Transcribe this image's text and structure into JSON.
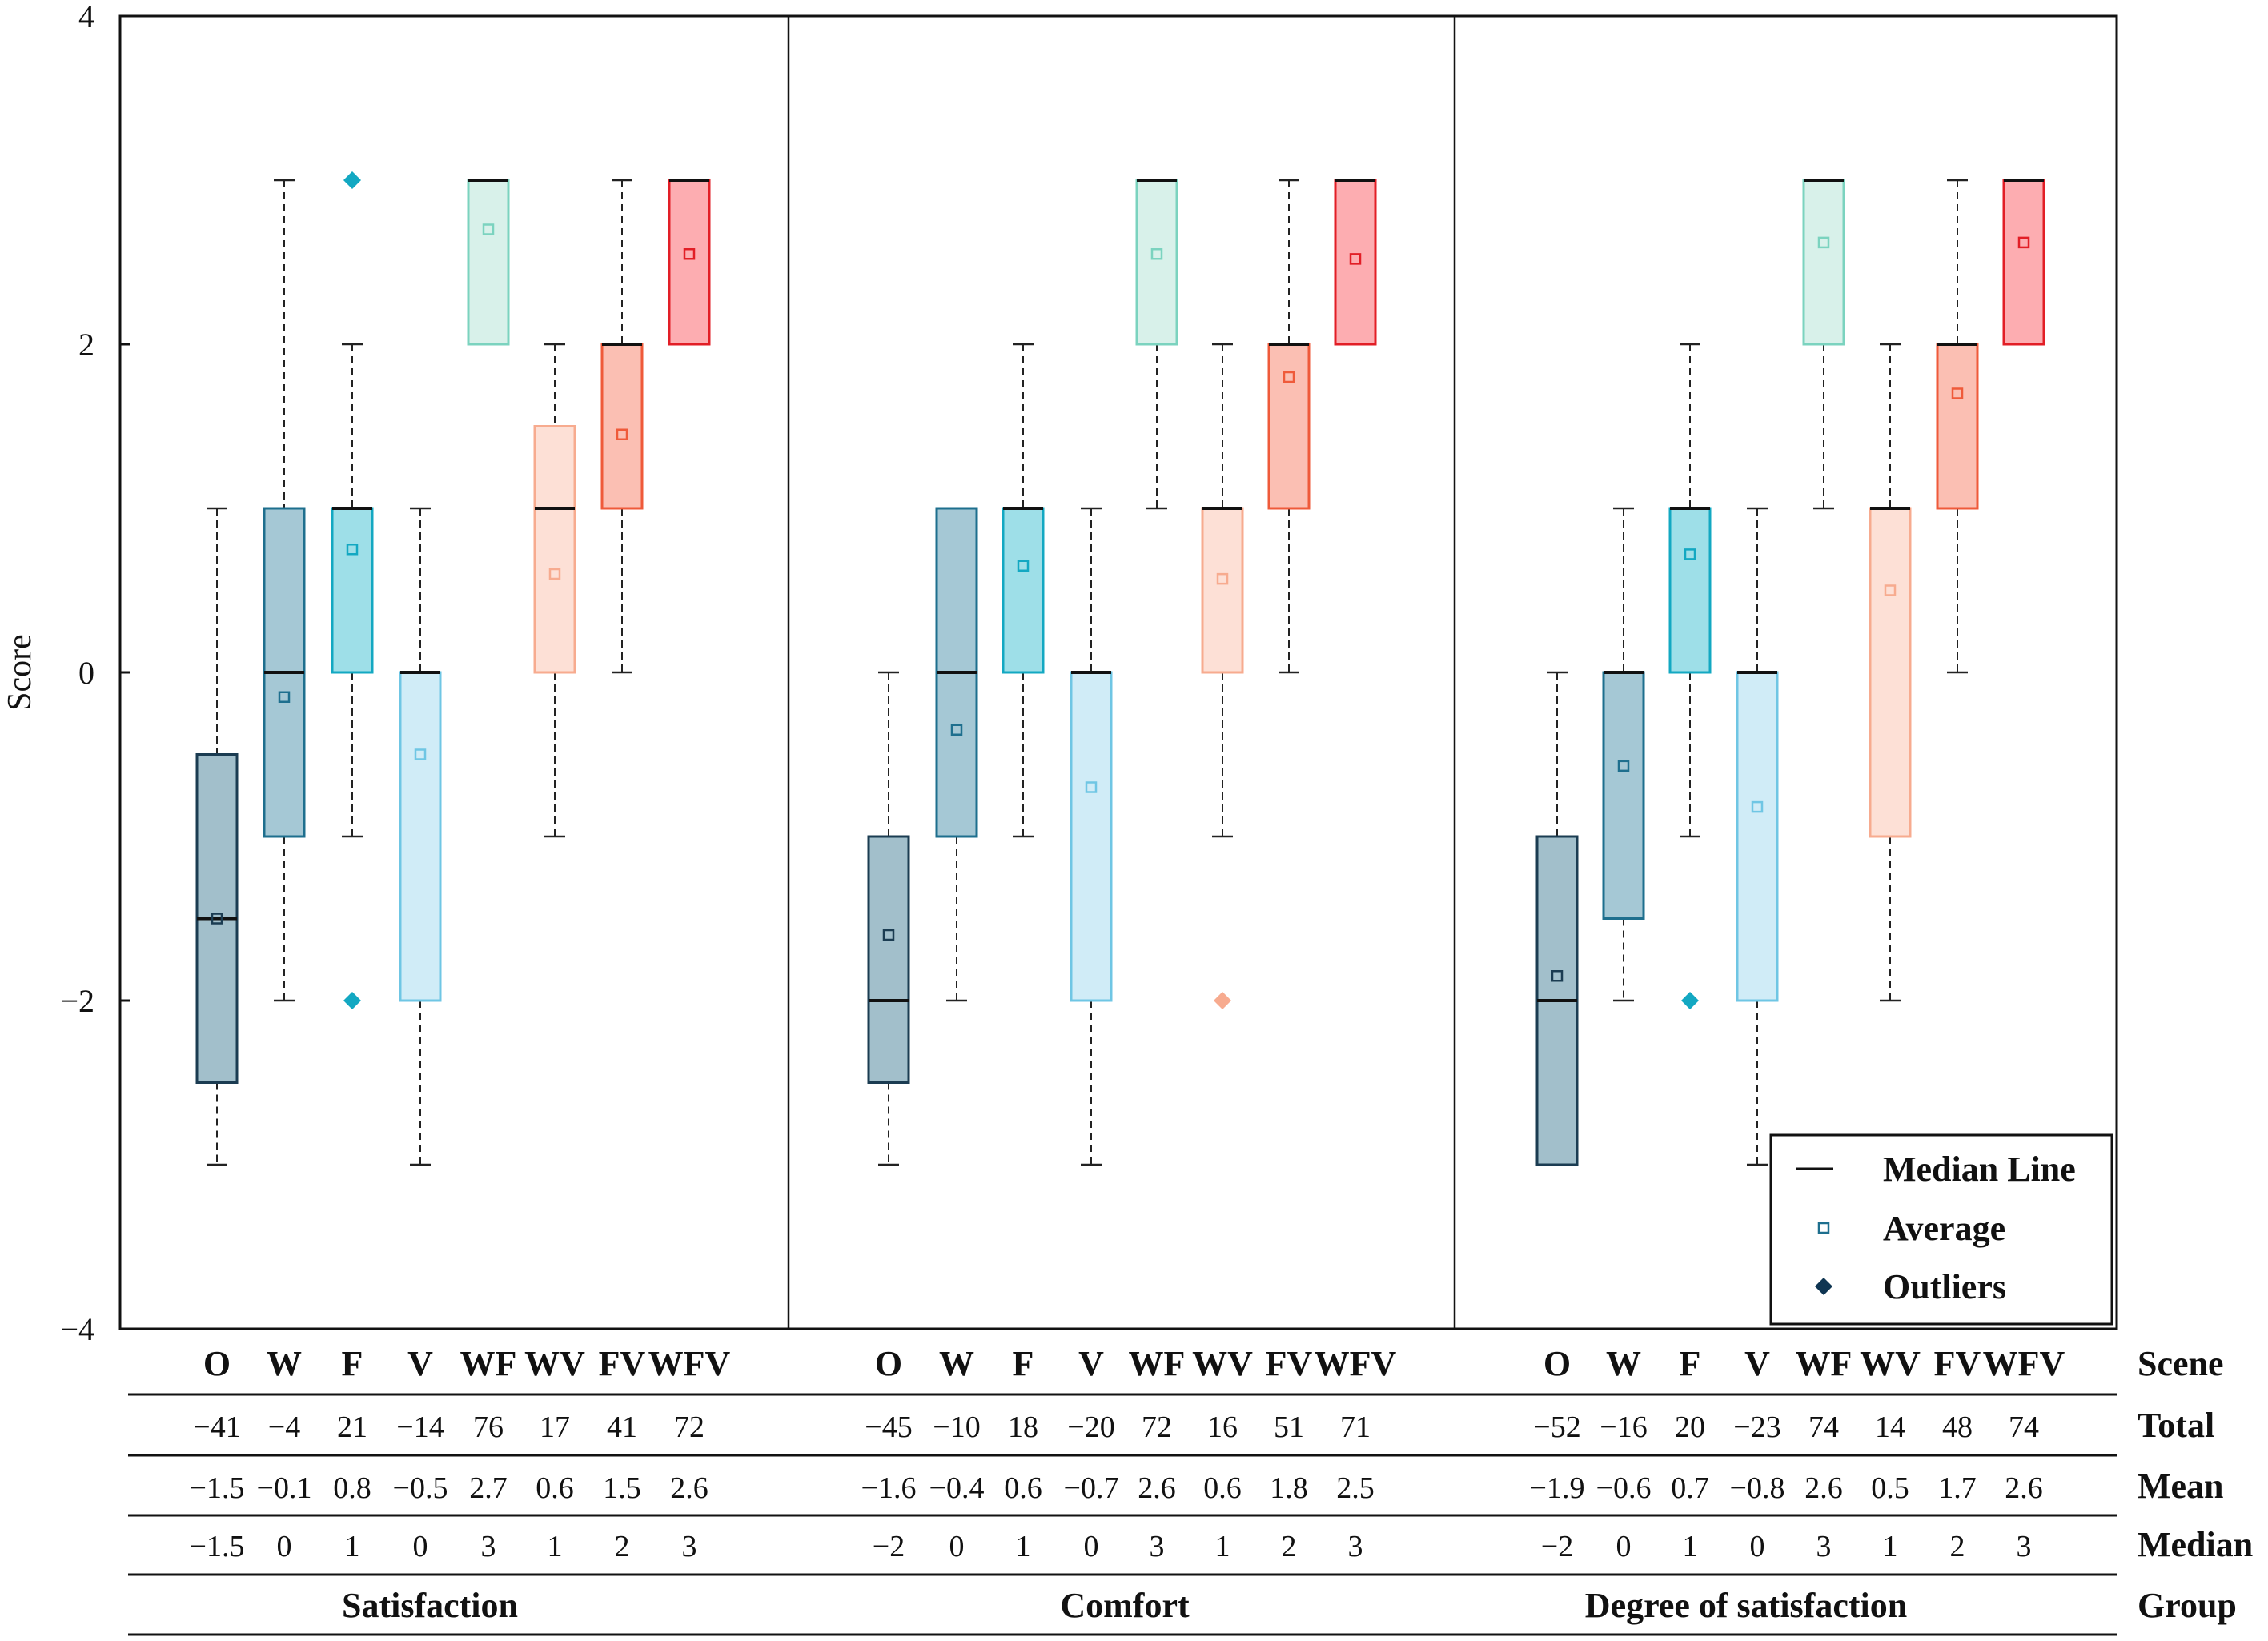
{
  "chart_data": {
    "type": "box",
    "ylabel": "Score",
    "ylim": [
      -4,
      4
    ],
    "yticks": [
      -4,
      -2,
      0,
      2,
      4
    ],
    "ytick_labels": [
      "−4",
      "−2",
      "0",
      "2",
      "4"
    ],
    "scenes": [
      "O",
      "W",
      "F",
      "V",
      "WF",
      "WV",
      "FV",
      "WFV"
    ],
    "scene_colors": {
      "O": {
        "fill": "#a2bfcb",
        "stroke": "#1b3c52"
      },
      "W": {
        "fill": "#a5c8d5",
        "stroke": "#1e6f8e"
      },
      "F": {
        "fill": "#9edfe8",
        "stroke": "#13a8c2"
      },
      "V": {
        "fill": "#d0ecf7",
        "stroke": "#6fc6e4"
      },
      "WF": {
        "fill": "#d8f1ea",
        "stroke": "#7bd3bf"
      },
      "WV": {
        "fill": "#fde0d6",
        "stroke": "#f7ab8f"
      },
      "FV": {
        "fill": "#fbbfb3",
        "stroke": "#ef5a3a"
      },
      "WFV": {
        "fill": "#fdadb1",
        "stroke": "#e21e26"
      }
    },
    "groups": [
      {
        "name": "Satisfaction",
        "boxes": [
          {
            "scene": "O",
            "q1": -2.5,
            "median": -1.5,
            "q3": -0.5,
            "whisker_low": -3,
            "whisker_high": 1,
            "mean": -1.5,
            "outliers": []
          },
          {
            "scene": "W",
            "q1": -1,
            "median": 0,
            "q3": 1,
            "whisker_low": -2,
            "whisker_high": 3,
            "mean": -0.15,
            "outliers": []
          },
          {
            "scene": "F",
            "q1": 0,
            "median": 1,
            "q3": 1,
            "whisker_low": -1,
            "whisker_high": 2,
            "mean": 0.75,
            "outliers": [
              3,
              -2
            ]
          },
          {
            "scene": "V",
            "q1": -2,
            "median": 0,
            "q3": 0,
            "whisker_low": -3,
            "whisker_high": 1,
            "mean": -0.5,
            "outliers": []
          },
          {
            "scene": "WF",
            "q1": 2,
            "median": 3,
            "q3": 3,
            "whisker_low": 2,
            "whisker_high": 3,
            "mean": 2.7,
            "outliers": []
          },
          {
            "scene": "WV",
            "q1": 0,
            "median": 1,
            "q3": 1.5,
            "whisker_low": -1,
            "whisker_high": 2,
            "mean": 0.6,
            "outliers": []
          },
          {
            "scene": "FV",
            "q1": 1,
            "median": 2,
            "q3": 2,
            "whisker_low": 0,
            "whisker_high": 3,
            "mean": 1.45,
            "outliers": []
          },
          {
            "scene": "WFV",
            "q1": 2,
            "median": 3,
            "q3": 3,
            "whisker_low": 2,
            "whisker_high": 3,
            "mean": 2.55,
            "outliers": []
          }
        ],
        "total": [
          "−41",
          "−4",
          "21",
          "−14",
          "76",
          "17",
          "41",
          "72"
        ],
        "mean": [
          "−1.5",
          "−0.1",
          "0.8",
          "−0.5",
          "2.7",
          "0.6",
          "1.5",
          "2.6"
        ],
        "median": [
          "−1.5",
          "0",
          "1",
          "0",
          "3",
          "1",
          "2",
          "3"
        ]
      },
      {
        "name": "Comfort",
        "boxes": [
          {
            "scene": "O",
            "q1": -2.5,
            "median": -2,
            "q3": -1,
            "whisker_low": -3,
            "whisker_high": 0,
            "mean": -1.6,
            "outliers": []
          },
          {
            "scene": "W",
            "q1": -1,
            "median": 0,
            "q3": 1,
            "whisker_low": -2,
            "whisker_high": 1,
            "mean": -0.35,
            "outliers": []
          },
          {
            "scene": "F",
            "q1": 0,
            "median": 1,
            "q3": 1,
            "whisker_low": -1,
            "whisker_high": 2,
            "mean": 0.65,
            "outliers": []
          },
          {
            "scene": "V",
            "q1": -2,
            "median": 0,
            "q3": 0,
            "whisker_low": -3,
            "whisker_high": 1,
            "mean": -0.7,
            "outliers": []
          },
          {
            "scene": "WF",
            "q1": 2,
            "median": 3,
            "q3": 3,
            "whisker_low": 1,
            "whisker_high": 3,
            "mean": 2.55,
            "outliers": []
          },
          {
            "scene": "WV",
            "q1": 0,
            "median": 1,
            "q3": 1,
            "whisker_low": -1,
            "whisker_high": 2,
            "mean": 0.57,
            "outliers": [
              -2
            ]
          },
          {
            "scene": "FV",
            "q1": 1,
            "median": 2,
            "q3": 2,
            "whisker_low": 0,
            "whisker_high": 3,
            "mean": 1.8,
            "outliers": []
          },
          {
            "scene": "WFV",
            "q1": 2,
            "median": 3,
            "q3": 3,
            "whisker_low": 2,
            "whisker_high": 3,
            "mean": 2.52,
            "outliers": []
          }
        ],
        "total": [
          "−45",
          "−10",
          "18",
          "−20",
          "72",
          "16",
          "51",
          "71"
        ],
        "mean": [
          "−1.6",
          "−0.4",
          "0.6",
          "−0.7",
          "2.6",
          "0.6",
          "1.8",
          "2.5"
        ],
        "median": [
          "−2",
          "0",
          "1",
          "0",
          "3",
          "1",
          "2",
          "3"
        ]
      },
      {
        "name": "Degree of satisfaction",
        "boxes": [
          {
            "scene": "O",
            "q1": -3,
            "median": -2,
            "q3": -1,
            "whisker_low": -3,
            "whisker_high": 0,
            "mean": -1.85,
            "outliers": []
          },
          {
            "scene": "W",
            "q1": -1.5,
            "median": 0,
            "q3": 0,
            "whisker_low": -2,
            "whisker_high": 1,
            "mean": -0.57,
            "outliers": []
          },
          {
            "scene": "F",
            "q1": 0,
            "median": 1,
            "q3": 1,
            "whisker_low": -1,
            "whisker_high": 2,
            "mean": 0.72,
            "outliers": [
              -2
            ]
          },
          {
            "scene": "V",
            "q1": -2,
            "median": 0,
            "q3": 0,
            "whisker_low": -3,
            "whisker_high": 1,
            "mean": -0.82,
            "outliers": []
          },
          {
            "scene": "WF",
            "q1": 2,
            "median": 3,
            "q3": 3,
            "whisker_low": 1,
            "whisker_high": 3,
            "mean": 2.62,
            "outliers": []
          },
          {
            "scene": "WV",
            "q1": -1,
            "median": 1,
            "q3": 1,
            "whisker_low": -2,
            "whisker_high": 2,
            "mean": 0.5,
            "outliers": []
          },
          {
            "scene": "FV",
            "q1": 1,
            "median": 2,
            "q3": 2,
            "whisker_low": 0,
            "whisker_high": 3,
            "mean": 1.7,
            "outliers": []
          },
          {
            "scene": "WFV",
            "q1": 2,
            "median": 3,
            "q3": 3,
            "whisker_low": 2,
            "whisker_high": 3,
            "mean": 2.62,
            "outliers": []
          }
        ],
        "total": [
          "−52",
          "−16",
          "20",
          "−23",
          "74",
          "14",
          "48",
          "74"
        ],
        "mean": [
          "−1.9",
          "−0.6",
          "0.7",
          "−0.8",
          "2.6",
          "0.5",
          "1.7",
          "2.6"
        ],
        "median": [
          "−2",
          "0",
          "1",
          "0",
          "3",
          "1",
          "2",
          "3"
        ]
      }
    ],
    "row_labels": [
      "Scene",
      "Total",
      "Mean",
      "Median",
      "Group"
    ],
    "legend": {
      "position": "bottom-right",
      "items": [
        "Median Line",
        "Average",
        "Outliers"
      ]
    }
  }
}
